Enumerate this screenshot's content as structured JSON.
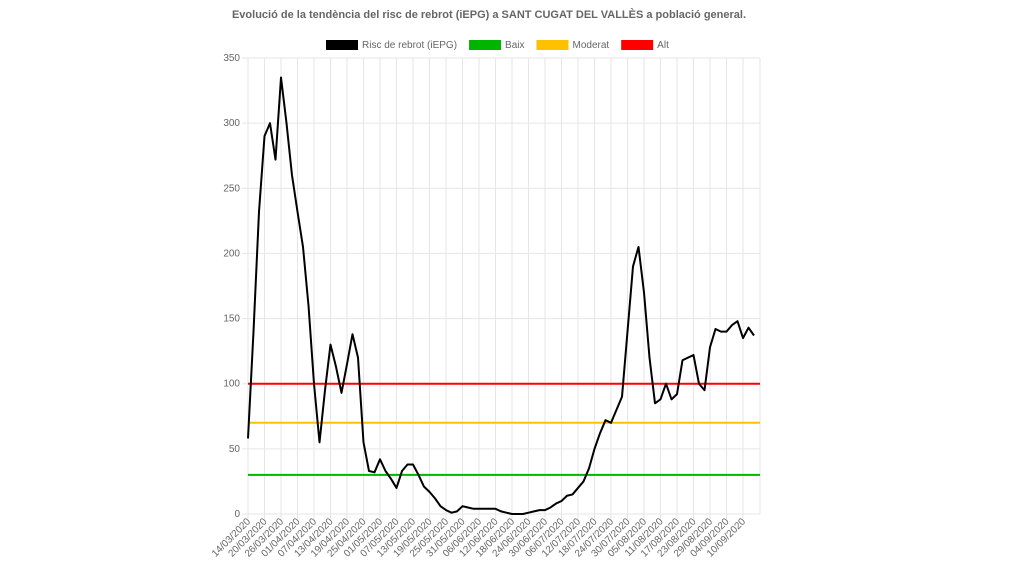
{
  "chart_data": {
    "type": "line",
    "title": "Evolució de la tendència del risc de rebrot (iEPG) a SANT CUGAT DEL VALLÈS a població general.",
    "categories": [
      "14/03/2020",
      null,
      null,
      "20/03/2020",
      null,
      null,
      "26/03/2020",
      null,
      null,
      "01/04/2020",
      null,
      null,
      "07/04/2020",
      null,
      null,
      "13/04/2020",
      null,
      null,
      "19/04/2020",
      null,
      null,
      "25/04/2020",
      null,
      null,
      "01/05/2020",
      null,
      null,
      "07/05/2020",
      null,
      null,
      "13/05/2020",
      null,
      null,
      "19/05/2020",
      null,
      null,
      "25/05/2020",
      null,
      null,
      "31/05/2020",
      null,
      null,
      "06/06/2020",
      null,
      null,
      "12/06/2020",
      null,
      null,
      "18/06/2020",
      null,
      null,
      "24/06/2020",
      null,
      null,
      "30/06/2020",
      null,
      null,
      "06/07/2020",
      null,
      null,
      "12/07/2020",
      null,
      null,
      "18/07/2020",
      null,
      null,
      "24/07/2020",
      null,
      null,
      "30/07/2020",
      null,
      null,
      "05/08/2020",
      null,
      null,
      "11/08/2020",
      null,
      null,
      "17/08/2020",
      null,
      null,
      "23/08/2020",
      null,
      null,
      "29/08/2020",
      null,
      null,
      "04/09/2020",
      null,
      null,
      "10/09/2020",
      null,
      null
    ],
    "series": [
      {
        "name": "Risc de rebrot (iEPG)",
        "color": "#000000",
        "values": [
          58,
          140,
          232,
          290,
          300,
          272,
          335,
          300,
          260,
          232,
          205,
          160,
          100,
          55,
          95,
          130,
          113,
          93,
          115,
          138,
          120,
          55,
          33,
          32,
          42,
          33,
          27,
          20,
          33,
          38,
          38,
          30,
          21,
          17,
          12,
          6,
          3,
          1,
          2,
          6,
          5,
          4,
          4,
          4,
          4,
          4,
          2,
          1,
          0,
          0,
          0,
          1,
          2,
          3,
          3,
          5,
          8,
          10,
          14,
          15,
          20,
          25,
          35,
          50,
          62,
          72,
          70,
          80,
          90,
          140,
          190,
          205,
          170,
          120,
          85,
          88,
          100,
          88,
          92,
          118,
          120,
          122,
          100,
          95,
          128,
          142,
          140,
          140,
          145,
          148,
          135,
          143,
          137
        ]
      }
    ],
    "thresholds": [
      {
        "name": "Baix",
        "color": "#00b400",
        "value": 30
      },
      {
        "name": "Moderat",
        "color": "#ffc000",
        "value": 70
      },
      {
        "name": "Alt",
        "color": "#ff0000",
        "value": 100
      }
    ],
    "ylim": [
      0,
      350
    ],
    "yticks": [
      0,
      50,
      100,
      150,
      200,
      250,
      300,
      350
    ],
    "grid": true,
    "legend": "top"
  }
}
